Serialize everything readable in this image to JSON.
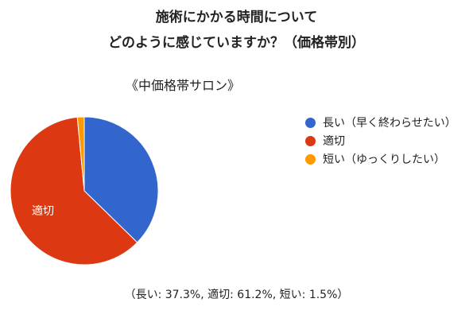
{
  "chart_data": {
    "type": "pie",
    "title": "施術にかかる時間について",
    "title_line2": "どのように感じていますか？（価格帯別）",
    "subtitle": "《中価格帯サロン》",
    "categories": [
      "長い（早く終わらせたい）",
      "適切",
      "短い（ゆっくりしたい）"
    ],
    "values": [
      37.3,
      61.2,
      1.5
    ],
    "colors": [
      "#3366cc",
      "#dc3912",
      "#ff9900"
    ],
    "slice_labels": [
      "",
      "適切",
      ""
    ],
    "legend_position": "right",
    "summary": "（長い: 37.3%, 適切: 61.2%, 短い: 1.5%）"
  }
}
